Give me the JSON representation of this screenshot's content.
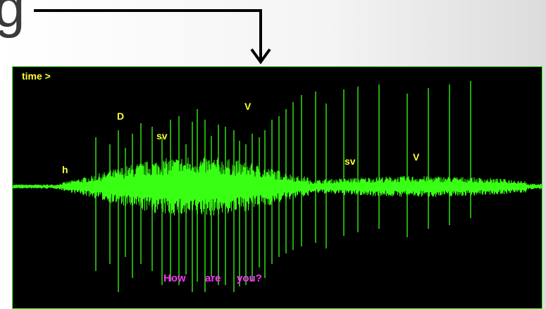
{
  "header": {
    "title_fragment": "g"
  },
  "oscilloscope": {
    "time_label": "time >",
    "phoneme_labels": [
      "h",
      "D",
      "sv",
      "V",
      "sv",
      "V"
    ],
    "caption": [
      "How",
      "are",
      "you?"
    ],
    "colors": {
      "background": "#000000",
      "waveform": "#39ff14",
      "labels": "#ffff33",
      "caption": "#ff33ff"
    }
  }
}
